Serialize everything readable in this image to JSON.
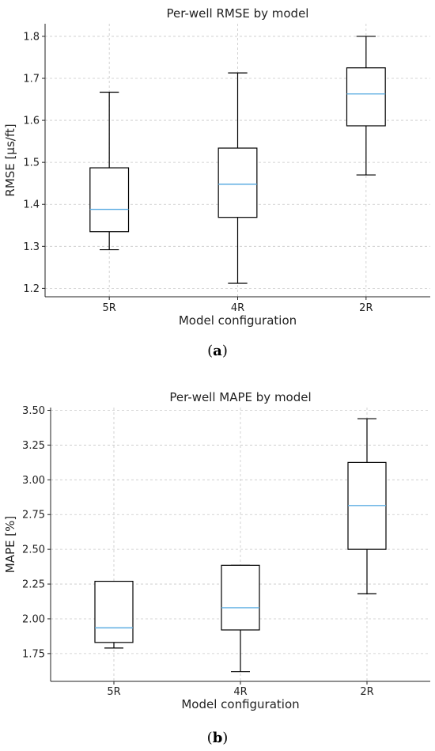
{
  "chart_data": [
    {
      "type": "box",
      "title": "Per-well RMSE by model",
      "xlabel": "Model configuration",
      "ylabel": "RMSE [μs/ft]",
      "categories": [
        "5R",
        "4R",
        "2R"
      ],
      "boxes": [
        {
          "category": "5R",
          "whisker_low": 1.292,
          "q1": 1.335,
          "median": 1.388,
          "q3": 1.487,
          "whisker_high": 1.667
        },
        {
          "category": "4R",
          "whisker_low": 1.212,
          "q1": 1.369,
          "median": 1.448,
          "q3": 1.534,
          "whisker_high": 1.713
        },
        {
          "category": "2R",
          "whisker_low": 1.47,
          "q1": 1.587,
          "median": 1.663,
          "q3": 1.725,
          "whisker_high": 1.8
        }
      ],
      "ylim": [
        1.18,
        1.83
      ],
      "yticks": [
        1.2,
        1.3,
        1.4,
        1.5,
        1.6,
        1.7,
        1.8
      ],
      "ytick_labels": [
        "1.2",
        "1.3",
        "1.4",
        "1.5",
        "1.6",
        "1.7",
        "1.8"
      ],
      "grid": true,
      "median_color": "#5dade2",
      "box_color": "#000000",
      "caption_letter": "a"
    },
    {
      "type": "box",
      "title": "Per-well MAPE by model",
      "xlabel": "Model configuration",
      "ylabel": "MAPE [%]",
      "categories": [
        "5R",
        "4R",
        "2R"
      ],
      "boxes": [
        {
          "category": "5R",
          "whisker_low": 1.79,
          "q1": 1.83,
          "median": 1.935,
          "q3": 2.27,
          "whisker_high": 2.27
        },
        {
          "category": "4R",
          "whisker_low": 1.62,
          "q1": 1.92,
          "median": 2.08,
          "q3": 2.385,
          "whisker_high": 2.385
        },
        {
          "category": "2R",
          "whisker_low": 2.18,
          "q1": 2.5,
          "median": 2.815,
          "q3": 3.125,
          "whisker_high": 3.44
        }
      ],
      "ylim": [
        1.55,
        3.52
      ],
      "yticks": [
        1.75,
        2.0,
        2.25,
        2.5,
        2.75,
        3.0,
        3.25,
        3.5
      ],
      "ytick_labels": [
        "1.75",
        "2.00",
        "2.25",
        "2.50",
        "2.75",
        "3.00",
        "3.25",
        "3.50"
      ],
      "grid": true,
      "median_color": "#5dade2",
      "box_color": "#000000",
      "caption_letter": "b"
    }
  ]
}
